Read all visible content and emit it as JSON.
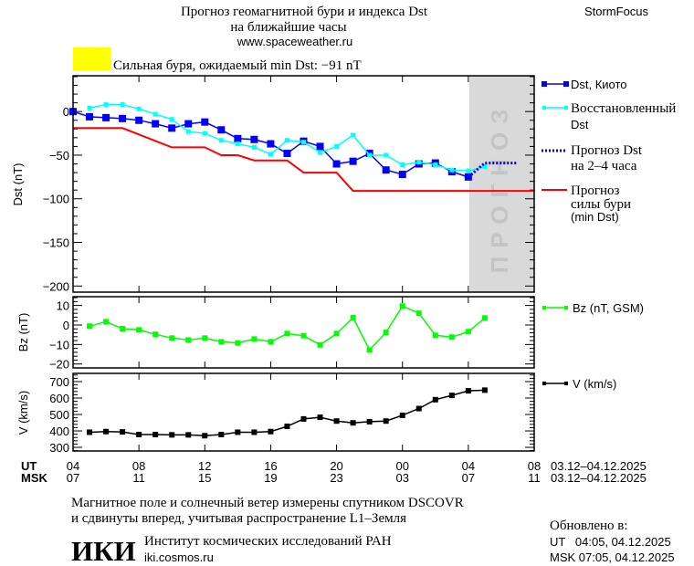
{
  "header": {
    "title_line1": "Прогноз геомагнитной бури и индекса Dst",
    "title_line2": "на ближайшие часы",
    "url": "www.spaceweather.ru",
    "brand": "StormFocus",
    "storm_status": "Сильная буря, ожидаемый min Dst: −91 nT",
    "storm_color": "#ffff00"
  },
  "legend": {
    "dst_kyoto": "Dst, Киото",
    "restored_1": "Восстановленный",
    "restored_2": "Dst",
    "forecast_1": "Прогноз Dst",
    "forecast_2": "на 2–4 часа",
    "storm_1": "Прогноз",
    "storm_2": "силы бури",
    "storm_3": "(min Dst)",
    "bz": "Bz (nT, GSM)",
    "v": "V (km/s)"
  },
  "forecast_band_label": "ПРОГНОЗ",
  "xaxis": {
    "ut_label": "UT",
    "msk_label": "MSK",
    "ut_ticks": [
      "04",
      "08",
      "12",
      "16",
      "20",
      "00",
      "04",
      "08"
    ],
    "msk_ticks": [
      "07",
      "11",
      "15",
      "19",
      "23",
      "03",
      "07",
      "11"
    ],
    "ut_range": "03.12–04.12.2025",
    "msk_range": "03.12–04.12.2025"
  },
  "footer": {
    "note_line1": "Магнитное поле и солнечный ветер измерены спутником DSCOVR",
    "note_line2": "и сдвинуты вперед, учитывая распространение L1–Земля",
    "institute_logo": "ИКИ",
    "institute": "Институт космических исследований РАН",
    "institute_url": "iki.cosmos.ru",
    "updated_label": "Обновлено в:",
    "updated_ut": "UT   04:05, 04.12.2025",
    "updated_msk": "MSK 07:05, 04.12.2025"
  },
  "chart_data": [
    {
      "type": "line",
      "title": "Dst",
      "ylabel": "Dst (nT)",
      "x_unit": "hours since 04 UT 03.12.2025",
      "xlim": [
        0,
        28
      ],
      "ylim": [
        -207,
        41
      ],
      "yticks": [
        0,
        -50,
        -100,
        -150,
        -200
      ],
      "ytick_labels": [
        "0",
        "−50",
        "−100",
        "−150",
        "−200"
      ],
      "forecast_region": [
        24,
        28
      ],
      "series": [
        {
          "name": "Dst, Киото",
          "color": "#0000ff",
          "x_start": 0,
          "values": [
            0,
            -6,
            -7,
            -8,
            -10,
            -14,
            -19,
            -14,
            -12,
            -21,
            -31,
            -32,
            -37,
            -48,
            -34,
            -40,
            -60,
            -57,
            -48,
            -67,
            -72,
            -60,
            -59,
            -69,
            -75
          ]
        },
        {
          "name": "Восстановленный Dst",
          "color": "#00ffff",
          "x_start": 1,
          "values": [
            4,
            8,
            8,
            3,
            -3,
            -9,
            -23,
            -25,
            -33,
            -37,
            -41,
            -49,
            -33,
            -35,
            -47,
            -40,
            -27,
            -50,
            -50,
            -61,
            -58,
            -61,
            -67,
            -68,
            -63
          ]
        },
        {
          "name": "Прогноз Dst на 2-4 часа",
          "color": "#0000ff",
          "style": "dotted",
          "points": [
            [
              24,
              -75
            ],
            [
              25,
              -59
            ],
            [
              27,
              -59
            ]
          ]
        },
        {
          "name": "Прогноз силы бури (min Dst)",
          "color": "#ff0000",
          "points": [
            [
              0,
              -19
            ],
            [
              3,
              -19
            ],
            [
              6,
              -41
            ],
            [
              8,
              -41
            ],
            [
              9,
              -50
            ],
            [
              10,
              -50
            ],
            [
              11,
              -56
            ],
            [
              13,
              -56
            ],
            [
              14,
              -70
            ],
            [
              16,
              -70
            ],
            [
              17,
              -91
            ],
            [
              28,
              -91
            ]
          ]
        }
      ]
    },
    {
      "type": "line",
      "title": "Bz",
      "ylabel": "Bz (nT)",
      "xlim": [
        0,
        28
      ],
      "ylim": [
        -22,
        14.5
      ],
      "yticks": [
        10,
        0,
        -10,
        -20
      ],
      "ytick_labels": [
        "10",
        "0",
        "−10",
        "−20"
      ],
      "series": [
        {
          "name": "Bz (nT, GSM)",
          "color": "#00ff00",
          "x_start": 1,
          "values": [
            -0.6,
            1.7,
            -1.9,
            -2.5,
            -4.8,
            -6.7,
            -7.7,
            -6.7,
            -8.6,
            -9.2,
            -7.2,
            -8.6,
            -4.4,
            -5.5,
            -10.2,
            -4.4,
            3.8,
            -12.8,
            -3.8,
            9.7,
            6,
            -5.3,
            -6.2,
            -3.4,
            3.6
          ]
        }
      ]
    },
    {
      "type": "line",
      "title": "V",
      "ylabel": "V (km/s)",
      "xlim": [
        0,
        28
      ],
      "ylim": [
        278,
        750
      ],
      "yticks": [
        700,
        600,
        500,
        400,
        300
      ],
      "ytick_labels": [
        "700",
        "600",
        "500",
        "400",
        "300"
      ],
      "series": [
        {
          "name": "V (km/s)",
          "color": "#000000",
          "x_start": 1,
          "values": [
            392,
            396,
            394,
            378,
            378,
            376,
            376,
            371,
            378,
            392,
            392,
            396,
            428,
            473,
            483,
            460,
            449,
            456,
            460,
            495,
            536,
            590,
            616,
            644,
            648
          ]
        }
      ]
    }
  ]
}
